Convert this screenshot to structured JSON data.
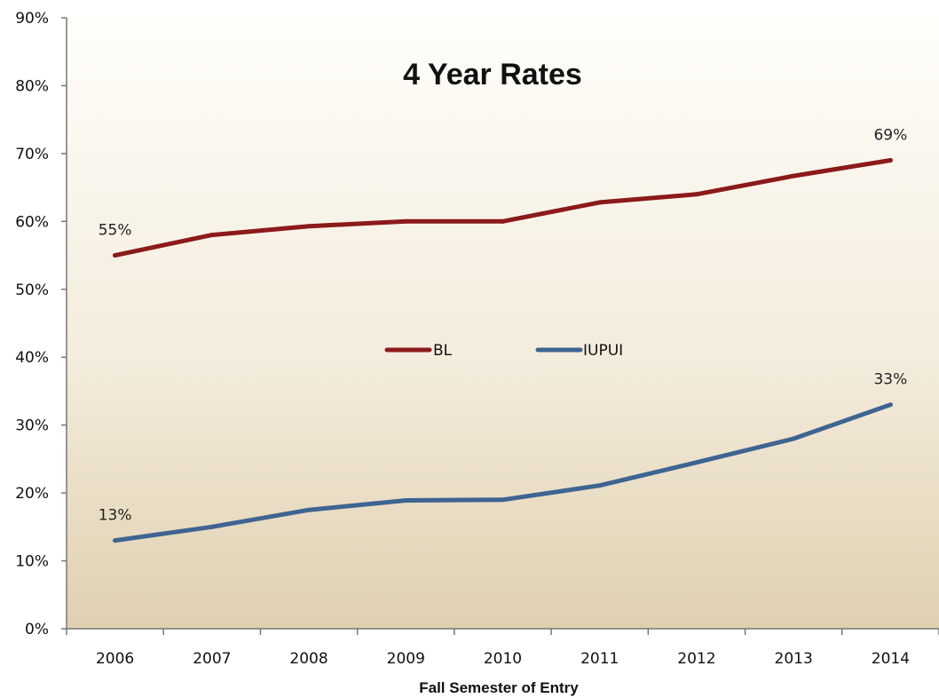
{
  "chart_data": {
    "type": "line",
    "title": "4 Year Rates",
    "xlabel": "Fall Semester of Entry",
    "ylabel": "",
    "categories": [
      "2006",
      "2007",
      "2008",
      "2009",
      "2010",
      "2011",
      "2012",
      "2013",
      "2014"
    ],
    "y_ticks": [
      "0%",
      "10%",
      "20%",
      "30%",
      "40%",
      "50%",
      "60%",
      "70%",
      "80%",
      "90%"
    ],
    "ylim": [
      0,
      90
    ],
    "grid": false,
    "legend_position": "center",
    "series": [
      {
        "name": "BL",
        "color": "#8b1a1a",
        "values": [
          55,
          58,
          59.3,
          60,
          60,
          62.8,
          64,
          66.7,
          69
        ],
        "data_labels": [
          {
            "index": 0,
            "text": "55%"
          },
          {
            "index": 8,
            "text": "69%"
          }
        ]
      },
      {
        "name": "IUPUI",
        "color": "#3e6491",
        "values": [
          13,
          15,
          17.5,
          18.9,
          19,
          21.1,
          24.5,
          28,
          33
        ],
        "data_labels": [
          {
            "index": 0,
            "text": "13%"
          },
          {
            "index": 8,
            "text": "33%"
          }
        ]
      }
    ]
  }
}
